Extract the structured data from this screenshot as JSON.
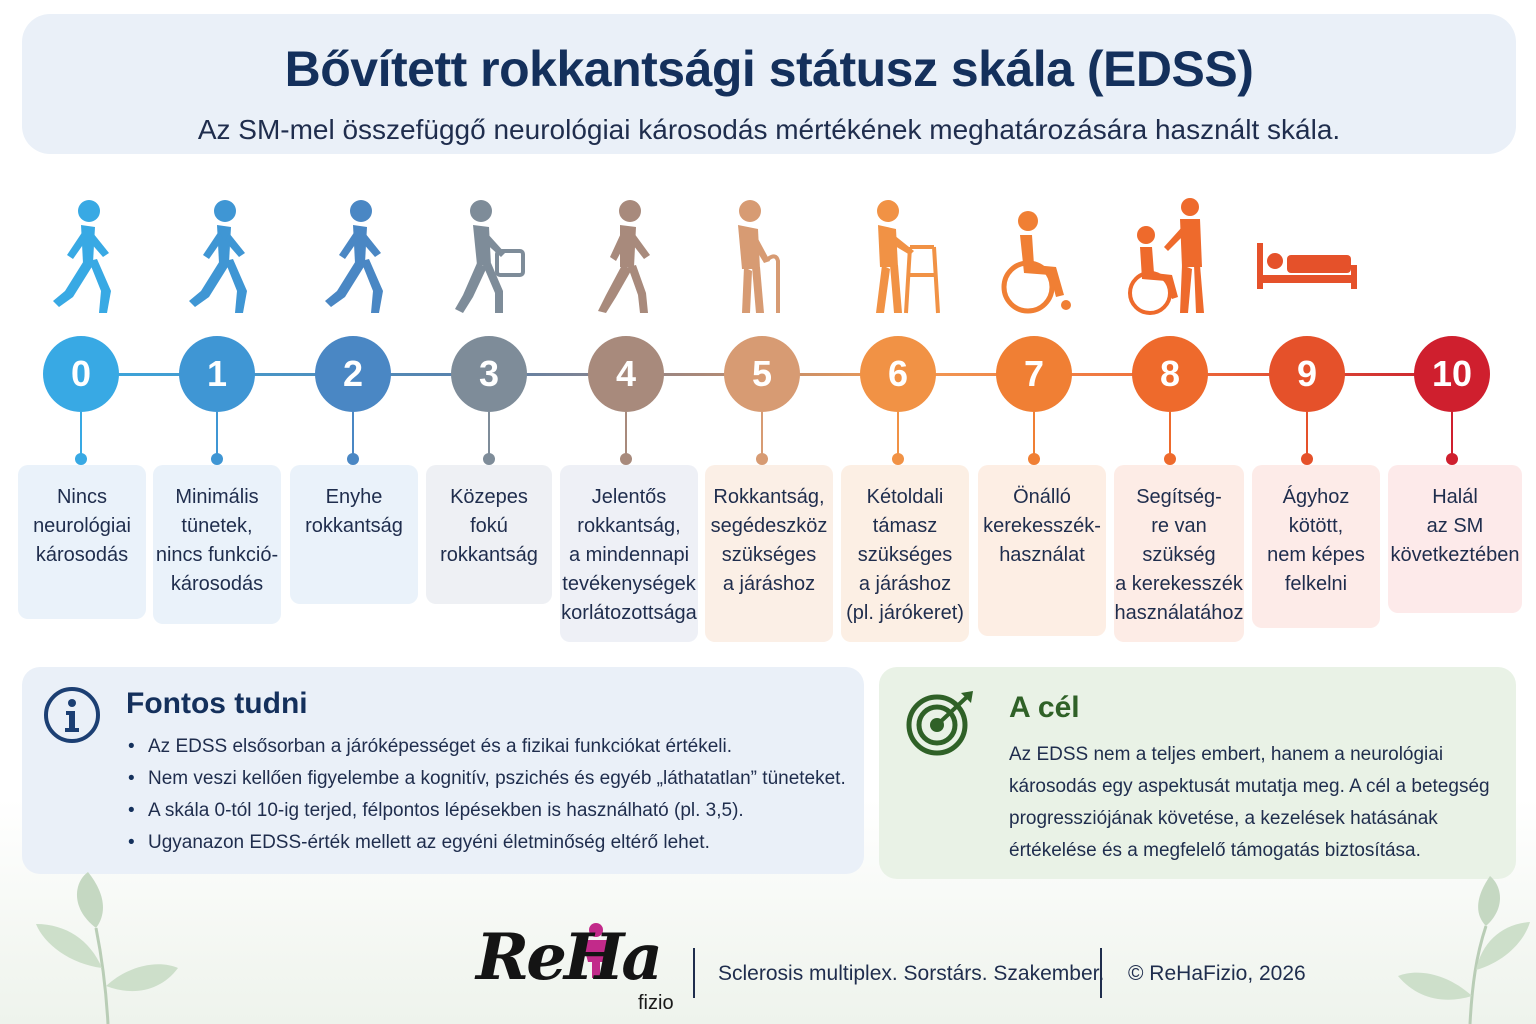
{
  "header": {
    "title": "Bővített rokkantsági státusz skála (EDSS)",
    "subtitle": "Az SM-mel összefüggő neurológiai károsodás mértékének meghatározására használt skála."
  },
  "steps": [
    {
      "value": "0",
      "lines": [
        "Nincs",
        "neurológiai",
        "károsodás"
      ],
      "color": "#38a9e4",
      "card_bg": "#eaf2fa",
      "icon": "walking-person-icon"
    },
    {
      "value": "1",
      "lines": [
        "Minimális",
        "tünetek,",
        "nincs funkció-",
        "károsodás"
      ],
      "color": "#3f96d4",
      "card_bg": "#eaf2fa",
      "icon": "walking-person-icon"
    },
    {
      "value": "2",
      "lines": [
        "Enyhe",
        "rokkantság"
      ],
      "color": "#4a87c4",
      "card_bg": "#eaf2fa",
      "icon": "walking-person-icon"
    },
    {
      "value": "3",
      "lines": [
        "Közepes",
        "fokú",
        "rokkantság"
      ],
      "color": "#7e8c99",
      "card_bg": "#eef0f4",
      "icon": "person-with-bag-icon"
    },
    {
      "value": "4",
      "lines": [
        "Jelentős",
        "rokkantság,",
        "a mindennapi",
        "tevékenységek",
        "korlátozottsága"
      ],
      "color": "#a88a7c",
      "card_bg": "#eef0f6",
      "icon": "limping-person-icon"
    },
    {
      "value": "5",
      "lines": [
        "Rokkantság,",
        "segédeszköz",
        "szükséges",
        "a járáshoz"
      ],
      "color": "#d79b73",
      "card_bg": "#fbefe6",
      "icon": "person-with-cane-icon"
    },
    {
      "value": "6",
      "lines": [
        "Kétoldali",
        "támasz",
        "szükséges",
        "a járáshoz",
        "(pl. járókeret)"
      ],
      "color": "#f19245",
      "card_bg": "#fcefe4",
      "icon": "person-with-walker-icon"
    },
    {
      "value": "7",
      "lines": [
        "Önálló",
        "kerekesszék-",
        "használat"
      ],
      "color": "#f07f34",
      "card_bg": "#fdeee4",
      "icon": "wheelchair-icon"
    },
    {
      "value": "8",
      "lines": [
        "Segítség-",
        "re van szükség",
        "a kerekesszék",
        "használatához"
      ],
      "color": "#ee6a2c",
      "card_bg": "#fdece6",
      "icon": "wheelchair-with-helper-icon"
    },
    {
      "value": "9",
      "lines": [
        "Ágyhoz",
        "kötött,",
        "nem képes",
        "felkelni"
      ],
      "color": "#e5512a",
      "card_bg": "#fdebe8",
      "icon": "bed-icon"
    },
    {
      "value": "10",
      "lines": [
        "Halál",
        "az SM",
        "következtében"
      ],
      "color": "#cf1f2e",
      "card_bg": "#fdeaea",
      "icon": ""
    }
  ],
  "info": {
    "title": "Fontos tudni",
    "items": [
      "Az EDSS elsősorban a járóképességet és a fizikai funkciókat értékeli.",
      "Nem veszi kellően figyelembe a kognitív, pszichés és egyéb „láthatatlan” tüneteket.",
      "A skála 0-tól 10-ig terjed, félpontos lépésekben is használható (pl. 3,5).",
      "Ugyanazon EDSS-érték mellett az egyéni életminőség eltérő lehet."
    ]
  },
  "goal": {
    "title": "A cél",
    "lines": [
      "Az EDSS nem a teljes embert, hanem a neurológiai",
      "károsodás egy aspektusát mutatja meg. A cél a betegség",
      "progressziójának követése, a kezelések hatásának",
      "értékelése és a megfelelő támogatás biztosítása."
    ]
  },
  "footer": {
    "logo_text": "ReHa",
    "logo_sub": "fizio",
    "tagline": "Sclerosis multiplex. Sorstárs. Szakember.",
    "copyright": "© ReHaFizio, 2026"
  }
}
